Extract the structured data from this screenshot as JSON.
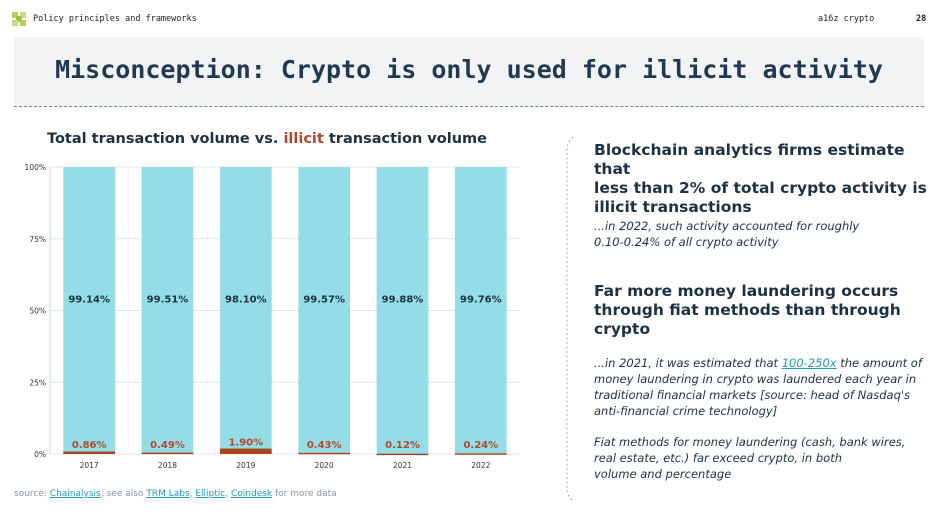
{
  "header": {
    "breadcrumb": "Policy principles and frameworks",
    "brand": "a16z crypto",
    "page_number": "28"
  },
  "slide": {
    "title": "Misconception: Crypto is only used for illicit activity"
  },
  "chart_title": {
    "prefix": "Total transaction volume vs. ",
    "highlight": "illicit",
    "suffix": " transaction volume"
  },
  "chart_data": {
    "type": "bar",
    "stacked": true,
    "categories": [
      "2017",
      "2018",
      "2019",
      "2020",
      "2021",
      "2022"
    ],
    "series": [
      {
        "name": "illicit",
        "values": [
          0.86,
          0.49,
          1.9,
          0.43,
          0.12,
          0.24
        ],
        "labels": [
          "0.86%",
          "0.49%",
          "1.90%",
          "0.43%",
          "0.12%",
          "0.24%"
        ],
        "color": "#a9441f"
      },
      {
        "name": "",
        "values": [
          99.14,
          99.51,
          98.1,
          99.57,
          99.88,
          99.76
        ],
        "labels": [
          "99.14%",
          "99.51%",
          "98.10%",
          "99.57%",
          "99.88%",
          "99.76%"
        ],
        "color": "#93dde6"
      }
    ],
    "ylim": [
      0,
      100
    ],
    "yticks": [
      0,
      25,
      50,
      75,
      100
    ],
    "ytick_labels": [
      "0%",
      "25%",
      "50%",
      "75%",
      "100%"
    ],
    "illicit_label_color": "#b5482b",
    "total_label_color": "#1d3145",
    "xlabel": "",
    "ylabel": ""
  },
  "source": {
    "prefix": "source: ",
    "link1": "Chainalysis",
    "middle": "; see also ",
    "link2": "TRM Labs",
    "sep1": ", ",
    "link3": "Elliptic",
    "sep2": ", ",
    "link4": "Coindesk",
    "suffix": " for more data"
  },
  "right": {
    "heading1": [
      "Blockchain analytics firms estimate that",
      "less than 2% of total crypto activity is",
      "illicit transactions"
    ],
    "note1": [
      "...in 2022, such activity accounted for roughly",
      "0.10-0.24% of all crypto activity"
    ],
    "heading2": [
      "Far more money laundering occurs",
      "through fiat methods than through",
      "crypto"
    ],
    "note2_l1_pre": "...in 2021, it was estimated that ",
    "note2_l1_link": "100-250x",
    "note2_l1_post": " the amount of",
    "note2_rest": [
      "money laundering in crypto was laundered each year in",
      "traditional financial markets [source: head of Nasdaq's",
      "anti-financial crime technology]"
    ],
    "note3": [
      "Fiat methods for money laundering (cash, bank wires,",
      "real estate, etc.) far exceed crypto, in both",
      "volume and percentage"
    ]
  },
  "colors": {
    "accent_teal": "#1e9db8",
    "title_navy": "#1f3a52",
    "logo_green": "#b5d15a"
  }
}
